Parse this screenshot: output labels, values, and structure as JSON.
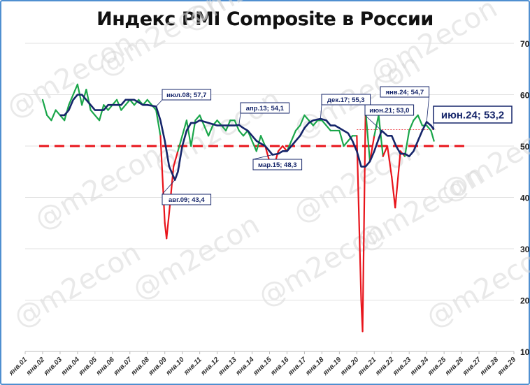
{
  "chart_data": {
    "type": "line",
    "title": "Индекс PMI Composite в России",
    "ylim": [
      10,
      70
    ],
    "yticks": [
      10,
      20,
      30,
      40,
      50,
      60,
      70
    ],
    "y_axis_position": "right",
    "grid": "horizontal",
    "xticks": [
      "янв.01",
      "янв.02",
      "янв.03",
      "янв.04",
      "янв.05",
      "янв.06",
      "янв.07",
      "янв.08",
      "янв.09",
      "янв.10",
      "янв.11",
      "янв.12",
      "янв.13",
      "янв.14",
      "янв.15",
      "янв.16",
      "янв.17",
      "янв.18",
      "янв.19",
      "янв.20",
      "янв.21",
      "янв.22",
      "янв.23",
      "янв.24",
      "янв.25",
      "янв.26",
      "янв.27",
      "янв.28",
      "янв.29"
    ],
    "threshold": 50,
    "colors": {
      "above": "#1aa64a",
      "below": "#e8141b",
      "smoothed": "#15256a",
      "threshold": "#e8141b"
    },
    "series": [
      {
        "key": "raw",
        "x": [
          2002.0,
          2002.25,
          2002.5,
          2002.75,
          2003.0,
          2003.25,
          2003.5,
          2003.75,
          2004.0,
          2004.25,
          2004.5,
          2004.75,
          2005.0,
          2005.25,
          2005.5,
          2005.75,
          2006.0,
          2006.25,
          2006.5,
          2006.75,
          2007.0,
          2007.25,
          2007.5,
          2007.75,
          2008.0,
          2008.25,
          2008.5,
          2008.75,
          2009.0,
          2009.1,
          2009.25,
          2009.5,
          2009.75,
          2010.0,
          2010.25,
          2010.5,
          2010.75,
          2011.0,
          2011.25,
          2011.5,
          2011.75,
          2012.0,
          2012.25,
          2012.5,
          2012.75,
          2013.0,
          2013.25,
          2013.5,
          2013.75,
          2014.0,
          2014.25,
          2014.5,
          2014.75,
          2015.0,
          2015.25,
          2015.5,
          2015.75,
          2016.0,
          2016.25,
          2016.5,
          2016.75,
          2017.0,
          2017.25,
          2017.5,
          2017.75,
          2018.0,
          2018.25,
          2018.5,
          2018.75,
          2019.0,
          2019.25,
          2019.5,
          2019.75,
          2020.0,
          2020.25,
          2020.33,
          2020.5,
          2020.75,
          2021.0,
          2021.25,
          2021.5,
          2021.75,
          2022.0,
          2022.2,
          2022.5,
          2022.75,
          2023.0,
          2023.25,
          2023.5,
          2023.75,
          2024.0,
          2024.25,
          2024.42
        ],
        "values": [
          59,
          56,
          55,
          57,
          56,
          55,
          58,
          60,
          62,
          58,
          61,
          57,
          56,
          55,
          58,
          57,
          58,
          59,
          57,
          58,
          59,
          58,
          59,
          58,
          59,
          58,
          57,
          52,
          35,
          32,
          37,
          46,
          49,
          52,
          55,
          50,
          55,
          56,
          54,
          52,
          54,
          55,
          54,
          53,
          55,
          55,
          53,
          52,
          53,
          51,
          49,
          52,
          50,
          47,
          46,
          49,
          50,
          49,
          51,
          53,
          54,
          56,
          55,
          54,
          55,
          55,
          54,
          53,
          53,
          53,
          50,
          51,
          52,
          52,
          20,
          13.9,
          57,
          47,
          52,
          56,
          48,
          50,
          44,
          38,
          49,
          48,
          53,
          55,
          56,
          54,
          54,
          53,
          51
        ]
      },
      {
        "key": "smoothed",
        "x": [
          2003.0,
          2003.25,
          2003.5,
          2003.75,
          2004.0,
          2004.25,
          2004.5,
          2004.75,
          2005.0,
          2005.25,
          2005.5,
          2005.75,
          2006.0,
          2006.25,
          2006.5,
          2006.75,
          2007.0,
          2007.25,
          2007.5,
          2007.75,
          2008.0,
          2008.5,
          2008.75,
          2009.0,
          2009.25,
          2009.58,
          2009.75,
          2010.0,
          2010.25,
          2010.5,
          2010.75,
          2011.0,
          2011.5,
          2012.0,
          2012.5,
          2013.0,
          2013.25,
          2013.5,
          2013.75,
          2014.0,
          2014.25,
          2014.5,
          2014.75,
          2015.17,
          2015.5,
          2015.75,
          2016.0,
          2016.25,
          2016.5,
          2016.75,
          2017.0,
          2017.25,
          2017.5,
          2017.92,
          2018.25,
          2018.5,
          2018.75,
          2019.0,
          2019.25,
          2019.5,
          2019.75,
          2020.0,
          2020.25,
          2020.5,
          2020.75,
          2021.0,
          2021.42,
          2021.75,
          2022.0,
          2022.25,
          2022.5,
          2022.75,
          2023.0,
          2023.25,
          2023.5,
          2023.75,
          2024.0,
          2024.25,
          2024.42
        ],
        "values": [
          56,
          56,
          57,
          59,
          60,
          60,
          59,
          58,
          57,
          57,
          57,
          58,
          58,
          58,
          58,
          59,
          59,
          59,
          58.5,
          58,
          58,
          57.7,
          55,
          51,
          46,
          43.4,
          45,
          50,
          53,
          54.5,
          54.5,
          55,
          54.5,
          54,
          54,
          54,
          54.1,
          53.5,
          53,
          52,
          51,
          50.5,
          50,
          48.3,
          48.5,
          49,
          49,
          50,
          51,
          52,
          53.5,
          54.5,
          55,
          55.3,
          55,
          54,
          54,
          53.5,
          53,
          52.5,
          51,
          49,
          46,
          46,
          47,
          49,
          53,
          52,
          52,
          50,
          48.5,
          48.5,
          48,
          49,
          51,
          53,
          54.7,
          54,
          53.2
        ]
      }
    ],
    "annotations": [
      {
        "label": "июл.08; 57,7",
        "x": 2008.5,
        "y": 57.7
      },
      {
        "label": "авг.09; 43,4",
        "x": 2009.58,
        "y": 43.4
      },
      {
        "label": "апр.13; 54,1",
        "x": 2013.25,
        "y": 54.1
      },
      {
        "label": "мар.15; 48,3",
        "x": 2015.17,
        "y": 48.3
      },
      {
        "label": "дек.17; 55,3",
        "x": 2017.92,
        "y": 55.3
      },
      {
        "label": "июн.21; 53,0",
        "x": 2021.42,
        "y": 53.0
      },
      {
        "label": "янв.24; 54,7",
        "x": 2024.0,
        "y": 54.7
      },
      {
        "label": "июн.24; 53,2",
        "x": 2024.42,
        "y": 53.2
      }
    ],
    "watermark": "@m2econ"
  }
}
